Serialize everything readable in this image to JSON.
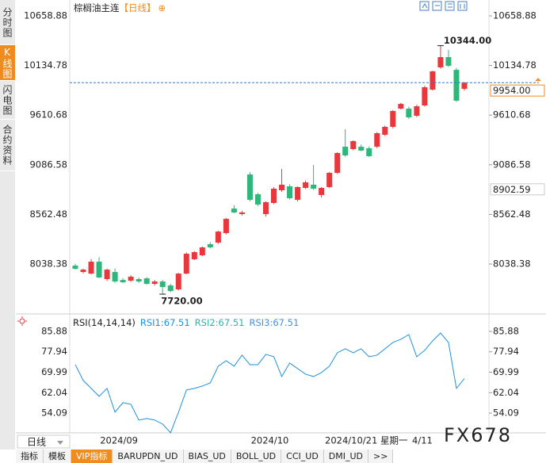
{
  "ui": {
    "side_tabs": [
      "分时图",
      "K线图",
      "闪电图",
      "合约资料"
    ],
    "period_button": "日线",
    "bottom_tabs": [
      "指标",
      "模板",
      "VIP指标",
      "BARUPDN_UD",
      "BIAS_UD",
      "BOLL_UD",
      "CCI_UD",
      "DMI_UD",
      ">>"
    ],
    "cursor_date": "2024/10/21 星期一",
    "cursor_time": "4/11",
    "watermark": "FX678"
  },
  "chart_data": [
    {
      "type": "candlestick",
      "title": "棕榈油主连",
      "period": "【日线】",
      "title_icon": "⊕",
      "up_color": "#e8383d",
      "down_color": "#2fb67a",
      "categories": [
        null,
        null,
        null,
        null,
        null,
        "2024/09",
        null,
        null,
        null,
        null,
        null,
        null,
        null,
        null,
        null,
        null,
        null,
        null,
        null,
        null,
        null,
        null,
        null,
        null,
        "2024/10",
        null,
        null,
        null,
        null,
        null,
        null,
        null,
        null,
        null,
        null,
        null,
        null,
        null,
        null,
        null,
        null,
        null,
        null,
        null,
        null,
        null,
        null,
        null,
        null,
        null
      ],
      "open": [
        8021,
        7954,
        7937,
        8063,
        7879,
        7954,
        7870,
        7862,
        7879,
        7887,
        7829,
        7854,
        7812,
        7770,
        7937,
        8088,
        8130,
        8248,
        8264,
        8365,
        8624,
        8566,
        8984,
        8775,
        8566,
        8683,
        8817,
        8859,
        8716,
        8842,
        8876,
        8767,
        8851,
        9001,
        9277,
        9252,
        9277,
        9261,
        9277,
        9403,
        9487,
        9679,
        9679,
        9604,
        9713,
        9880,
        10115,
        10223,
        10089,
        9888
      ],
      "high": [
        8040,
        7990,
        8090,
        8110,
        7990,
        7990,
        7890,
        7920,
        7895,
        7900,
        7870,
        7870,
        7830,
        7945,
        8160,
        8175,
        8225,
        8270,
        8390,
        8525,
        8660,
        8600,
        9010,
        8790,
        8700,
        8850,
        9043,
        8880,
        8860,
        8920,
        9085,
        8850,
        9010,
        9220,
        9462,
        9345,
        9300,
        9280,
        9430,
        9500,
        9665,
        9740,
        9700,
        9720,
        9920,
        10080,
        10344,
        10300,
        10110,
        9960
      ],
      "low": [
        7979,
        7940,
        7930,
        7890,
        7860,
        7840,
        7840,
        7850,
        7840,
        7820,
        7810,
        7720,
        7740,
        7760,
        7930,
        8080,
        8120,
        8205,
        8250,
        8350,
        8575,
        8550,
        8700,
        8650,
        8540,
        8670,
        8800,
        8720,
        8700,
        8830,
        8820,
        8740,
        8840,
        8990,
        9170,
        9240,
        9230,
        9170,
        9260,
        9390,
        9470,
        9670,
        9570,
        9590,
        9700,
        9870,
        10100,
        10120,
        9750,
        9870
      ],
      "close": [
        7988,
        7979,
        8063,
        7896,
        7979,
        7854,
        7845,
        7904,
        7854,
        7829,
        7854,
        7795,
        7753,
        7937,
        8147,
        8164,
        8214,
        8214,
        8381,
        8515,
        8583,
        8583,
        8716,
        8666,
        8691,
        8834,
        8876,
        8733,
        8851,
        8901,
        8834,
        8842,
        9001,
        9210,
        9185,
        9336,
        9236,
        9177,
        9420,
        9487,
        9654,
        9729,
        9587,
        9704,
        9905,
        10073,
        10223,
        10131,
        9763,
        9954
      ],
      "ylim": [
        7561.2,
        10784.5
      ],
      "yticks": [
        10658.88,
        10134.78,
        9610.68,
        9086.58,
        8562.48,
        8038.38
      ],
      "last_price": {
        "value": 9954,
        "label": "9954.00",
        "color": "#f08c1e",
        "line_color": "#2f7fd0"
      },
      "marker_price": {
        "value": 8902.59,
        "label": "8902.59"
      },
      "high_annotation": {
        "value": 10344,
        "label": "10344.00",
        "color": "#e8383d"
      },
      "low_annotation": {
        "value": 7720,
        "label": "7720.00",
        "color": "#2fb67a"
      }
    },
    {
      "type": "line",
      "title": "RSI(14,14,14)",
      "legend": [
        {
          "label": "RSI1:67.51",
          "color": "#1e8fe0"
        },
        {
          "label": "RSI2:67.51",
          "color": "#29b3b0"
        },
        {
          "label": "RSI3:67.51",
          "color": "#4a90d9"
        }
      ],
      "series": [
        {
          "color": "#1e8fe0",
          "values": [
            72.94,
            66.78,
            63.7,
            60.62,
            63.7,
            54.45,
            58.15,
            57.53,
            51.37,
            51.99,
            51.37,
            49.83,
            46.44,
            54.45,
            63.08,
            63.7,
            64.62,
            65.85,
            72.32,
            74.48,
            72.32,
            76.64,
            72.94,
            72.94,
            76.95,
            76.02,
            68.32,
            73.56,
            71.4,
            69.24,
            68.32,
            69.86,
            72.32,
            77.56,
            79.1,
            77.56,
            79.1,
            76.02,
            76.64,
            79.1,
            81.57,
            82.8,
            84.65,
            76.02,
            78.49,
            82.18,
            85.26,
            81.57,
            63.7,
            67.51
          ]
        }
      ],
      "ylim": [
        46.7,
        91.43
      ],
      "yticks": [
        85.88,
        77.94,
        69.99,
        62.04,
        54.09
      ]
    }
  ]
}
